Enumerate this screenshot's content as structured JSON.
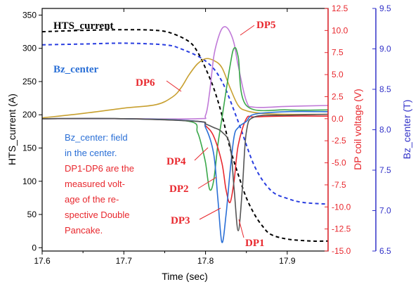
{
  "chart_data": {
    "type": "line",
    "xlabel": "Time (sec)",
    "ylabel_left": "HTS_current (A)",
    "ylabel_right1": "DP coil voltage (V)",
    "ylabel_right2": "Bz_center (T)",
    "xlim": [
      17.6,
      17.95
    ],
    "ylim_left": [
      -5,
      360
    ],
    "ylim_right1": [
      -15,
      12.5
    ],
    "ylim_right2": [
      6.5,
      9.5
    ],
    "x_ticks": [
      "17.6",
      "17.7",
      "17.8",
      "17.9"
    ],
    "y_left_ticks": [
      "0",
      "50",
      "100",
      "150",
      "200",
      "250",
      "300",
      "350"
    ],
    "y_right1_ticks": [
      "-15.0",
      "-12.5",
      "-10.0",
      "-7.5",
      "-5.0",
      "-2.5",
      "0.0",
      "2.5",
      "5.0",
      "7.5",
      "10.0",
      "12.5"
    ],
    "y_right2_ticks": [
      "6.5",
      "7.0",
      "7.5",
      "8.0",
      "8.5",
      "9.0",
      "9.5"
    ],
    "colors": {
      "voltage_axis": "#e8282e",
      "field_axis": "#3232c8",
      "HTS_current": "#000000",
      "Bz_center": "#2a3ee0",
      "DP1": "#555555",
      "DP2": "#e8282e",
      "DP3": "#2a6fd6",
      "DP4": "#3aa84a",
      "DP5": "#c07ad8",
      "DP6": "#c8a030"
    },
    "series": [
      {
        "name": "HTS_current",
        "axis": "left",
        "style": "dashed",
        "x": [
          17.6,
          17.65,
          17.7,
          17.74,
          17.76,
          17.78,
          17.79,
          17.8,
          17.81,
          17.82,
          17.83,
          17.84,
          17.85,
          17.86,
          17.87,
          17.88,
          17.9,
          17.93,
          17.95
        ],
        "y": [
          325,
          327,
          328,
          327,
          322,
          310,
          295,
          270,
          240,
          200,
          150,
          110,
          75,
          50,
          32,
          20,
          13,
          10,
          10
        ]
      },
      {
        "name": "Bz_center",
        "axis": "right2",
        "style": "dashed",
        "x": [
          17.6,
          17.65,
          17.7,
          17.75,
          17.77,
          17.8,
          17.82,
          17.84,
          17.86,
          17.88,
          17.9,
          17.92,
          17.95
        ],
        "y": [
          9.05,
          9.06,
          9.07,
          9.05,
          9.0,
          8.85,
          8.6,
          8.1,
          7.55,
          7.25,
          7.15,
          7.1,
          7.08
        ]
      },
      {
        "name": "DP6",
        "axis": "right1",
        "x": [
          17.6,
          17.65,
          17.7,
          17.74,
          17.76,
          17.77,
          17.78,
          17.79,
          17.8,
          17.81,
          17.82,
          17.83,
          17.84,
          17.85,
          17.87,
          17.9,
          17.95
        ],
        "y": [
          0.1,
          0.6,
          1.2,
          1.6,
          2.5,
          3.5,
          5.0,
          6.2,
          6.8,
          6.6,
          5.8,
          3.5,
          1.5,
          0.9,
          0.6,
          0.5,
          0.5
        ]
      },
      {
        "name": "DP5",
        "axis": "right1",
        "x": [
          17.6,
          17.7,
          17.79,
          17.8,
          17.805,
          17.81,
          17.815,
          17.82,
          17.825,
          17.83,
          17.835,
          17.84,
          17.85,
          17.86,
          17.9,
          17.95
        ],
        "y": [
          0,
          0,
          0,
          0.4,
          3.0,
          7.0,
          9.0,
          10.2,
          10.4,
          9.8,
          8.5,
          6.0,
          2.0,
          1.3,
          1.4,
          1.5
        ]
      },
      {
        "name": "DP4",
        "axis": "right1",
        "x": [
          17.6,
          17.7,
          17.78,
          17.79,
          17.795,
          17.8,
          17.805,
          17.81,
          17.815,
          17.82,
          17.83,
          17.835,
          17.84,
          17.85,
          17.9,
          17.95
        ],
        "y": [
          0,
          0,
          -0.3,
          -1.5,
          -3.0,
          -5.0,
          -8.0,
          -7.0,
          -3.0,
          0.0,
          6.0,
          8.0,
          7.0,
          1.5,
          1.0,
          1.0
        ]
      },
      {
        "name": "DP2",
        "axis": "right1",
        "x": [
          17.6,
          17.7,
          17.79,
          17.8,
          17.81,
          17.82,
          17.825,
          17.83,
          17.835,
          17.84,
          17.85,
          17.86,
          17.9,
          17.95
        ],
        "y": [
          0,
          0,
          -0.3,
          -0.8,
          -2.0,
          -5.0,
          -8.0,
          -9.5,
          -7.0,
          -3.0,
          0.0,
          0.2,
          0.3,
          0.3
        ]
      },
      {
        "name": "DP3",
        "axis": "right1",
        "x": [
          17.6,
          17.7,
          17.79,
          17.8,
          17.81,
          17.815,
          17.82,
          17.825,
          17.83,
          17.835,
          17.84,
          17.85,
          17.86,
          17.9,
          17.95
        ],
        "y": [
          0,
          0,
          -0.3,
          -1.0,
          -4.0,
          -9.0,
          -14.0,
          -11.0,
          -6.0,
          -2.0,
          -1.0,
          -0.3,
          0.5,
          0.8,
          0.8
        ]
      },
      {
        "name": "DP1",
        "axis": "right1",
        "x": [
          17.6,
          17.7,
          17.79,
          17.8,
          17.81,
          17.82,
          17.83,
          17.835,
          17.84,
          17.845,
          17.85,
          17.86,
          17.9,
          17.95
        ],
        "y": [
          0,
          0,
          -0.3,
          -0.6,
          -1.0,
          -1.5,
          -3.0,
          -8.0,
          -12.7,
          -8.0,
          -1.5,
          0.2,
          0.4,
          0.5
        ]
      }
    ],
    "annotations": {
      "hts_label": "HTS_current",
      "bz_label": "Bz_center",
      "dp1": "DP1",
      "dp2": "DP2",
      "dp3": "DP3",
      "dp4": "DP4",
      "dp5": "DP5",
      "dp6": "DP6"
    },
    "note_lines": {
      "bz_line1": "Bz_center: field",
      "bz_line2": "in the center.",
      "dp_line1": "DP1-DP6 are the",
      "dp_line2": "measured volt-",
      "dp_line3": "age of the re-",
      "dp_line4": "spective Double",
      "dp_line5": "Pancake."
    }
  }
}
